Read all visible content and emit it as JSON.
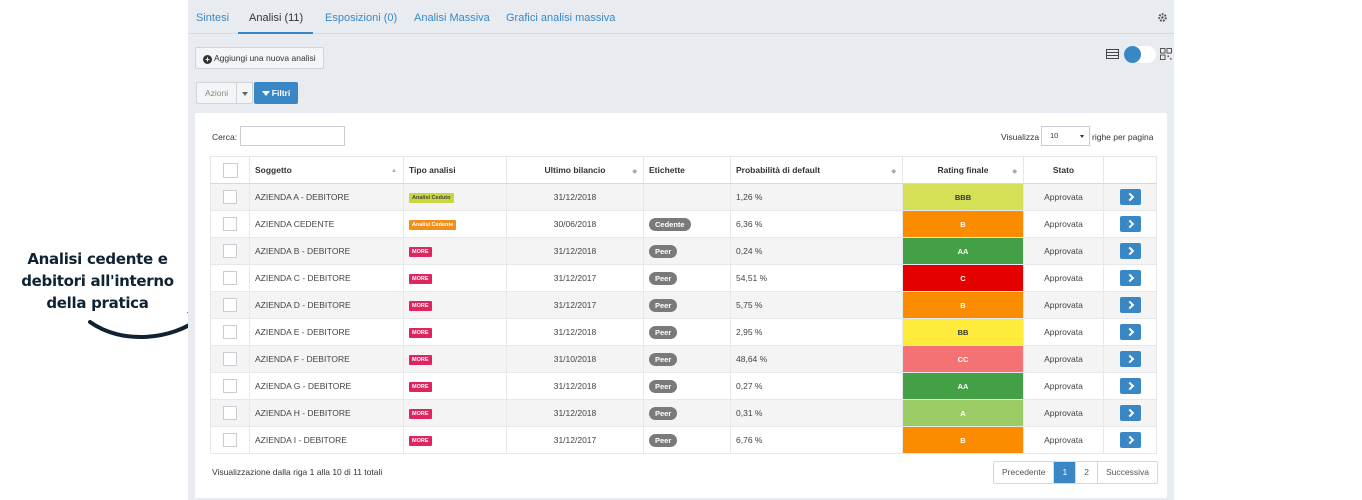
{
  "annotation": {
    "line1": "Analisi cedente e",
    "line2": "debitori all'interno",
    "line3": "della pratica"
  },
  "tabs": [
    {
      "label": "Sintesi"
    },
    {
      "label": "Analisi (11)"
    },
    {
      "label": "Esposizioni (0)"
    },
    {
      "label": "Analisi Massiva"
    },
    {
      "label": "Grafici analisi massiva"
    }
  ],
  "toolbar": {
    "add_label": "Aggiungi una nuova analisi",
    "azioni_label": "Azioni",
    "filtri_label": "Filtri"
  },
  "search": {
    "label": "Cerca:",
    "value": ""
  },
  "page_size": {
    "label": "Visualizza",
    "value": "10",
    "suffix": "righe per pagina"
  },
  "table": {
    "headers": {
      "soggetto": "Soggetto",
      "tipo": "Tipo analisi",
      "bilancio": "Ultimo bilancio",
      "etichette": "Etichette",
      "probabilita": "Probabilità di default",
      "rating": "Rating finale",
      "stato": "Stato"
    },
    "rows": [
      {
        "soggetto": "AZIENDA A - DEBITORE",
        "tipo": "Analisi Ceduto",
        "bilancio": "31/12/2018",
        "etichetta": "",
        "probabilita": "1,26 %",
        "rating": "BBB",
        "stato": "Approvata"
      },
      {
        "soggetto": "AZIENDA CEDENTE",
        "tipo": "Analisi Cedente",
        "bilancio": "30/06/2018",
        "etichetta": "Cedente",
        "probabilita": "6,36 %",
        "rating": "B",
        "stato": "Approvata"
      },
      {
        "soggetto": "AZIENDA B - DEBITORE",
        "tipo": "MORE",
        "bilancio": "31/12/2018",
        "etichetta": "Peer",
        "probabilita": "0,24 %",
        "rating": "AA",
        "stato": "Approvata"
      },
      {
        "soggetto": "AZIENDA C - DEBITORE",
        "tipo": "MORE",
        "bilancio": "31/12/2017",
        "etichetta": "Peer",
        "probabilita": "54,51 %",
        "rating": "C",
        "stato": "Approvata"
      },
      {
        "soggetto": "AZIENDA D - DEBITORE",
        "tipo": "MORE",
        "bilancio": "31/12/2017",
        "etichetta": "Peer",
        "probabilita": "5,75 %",
        "rating": "B",
        "stato": "Approvata"
      },
      {
        "soggetto": "AZIENDA E - DEBITORE",
        "tipo": "MORE",
        "bilancio": "31/12/2018",
        "etichetta": "Peer",
        "probabilita": "2,95 %",
        "rating": "BB",
        "stato": "Approvata"
      },
      {
        "soggetto": "AZIENDA F - DEBITORE",
        "tipo": "MORE",
        "bilancio": "31/10/2018",
        "etichetta": "Peer",
        "probabilita": "48,64 %",
        "rating": "CC",
        "stato": "Approvata"
      },
      {
        "soggetto": "AZIENDA G - DEBITORE",
        "tipo": "MORE",
        "bilancio": "31/12/2018",
        "etichetta": "Peer",
        "probabilita": "0,27 %",
        "rating": "AA",
        "stato": "Approvata"
      },
      {
        "soggetto": "AZIENDA H - DEBITORE",
        "tipo": "MORE",
        "bilancio": "31/12/2018",
        "etichetta": "Peer",
        "probabilita": "0,31 %",
        "rating": "A",
        "stato": "Approvata"
      },
      {
        "soggetto": "AZIENDA I - DEBITORE",
        "tipo": "MORE",
        "bilancio": "31/12/2017",
        "etichetta": "Peer",
        "probabilita": "6,76 %",
        "rating": "B",
        "stato": "Approvata"
      }
    ]
  },
  "rating_colors": {
    "BBB": "#d4e157",
    "B": "#fb8c00",
    "AA": "#43a047",
    "C": "#e50000",
    "BB": "#ffeb3b",
    "CC": "#f47174",
    "A": "#9ccc65"
  },
  "rating_text_colors": {
    "BBB": "#333333",
    "BB": "#333333"
  },
  "footer": {
    "info": "Visualizzazione dalla riga 1 alla 10 di 11 totali",
    "prev": "Precedente",
    "pages": [
      "1",
      "2"
    ],
    "next": "Successiva"
  }
}
